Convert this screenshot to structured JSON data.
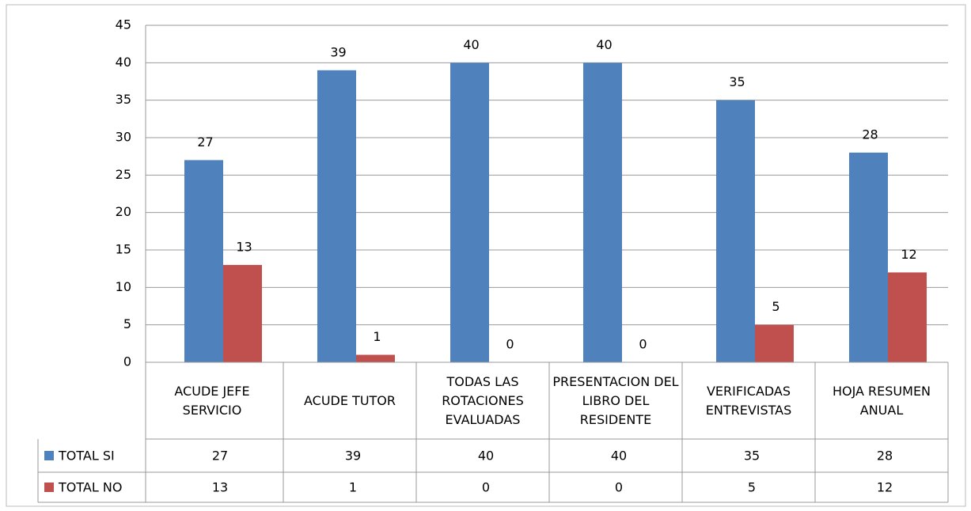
{
  "chart_data": {
    "type": "bar",
    "categories": [
      "ACUDE JEFE SERVICIO",
      "ACUDE TUTOR",
      "TODAS LAS ROTACIONES EVALUADAS",
      "PRESENTACION DEL LIBRO DEL RESIDENTE",
      "VERIFICADAS ENTREVISTAS",
      "HOJA RESUMEN ANUAL"
    ],
    "series": [
      {
        "name": "TOTAL SI",
        "color": "#4f81bd",
        "values": [
          27,
          39,
          40,
          40,
          35,
          28
        ]
      },
      {
        "name": "TOTAL NO",
        "color": "#c0504d",
        "values": [
          13,
          1,
          0,
          0,
          5,
          12
        ]
      }
    ],
    "ylim": [
      0,
      45
    ],
    "yticks": [
      0,
      5,
      10,
      15,
      20,
      25,
      30,
      35,
      40,
      45
    ],
    "grid": true,
    "data_table": true
  }
}
